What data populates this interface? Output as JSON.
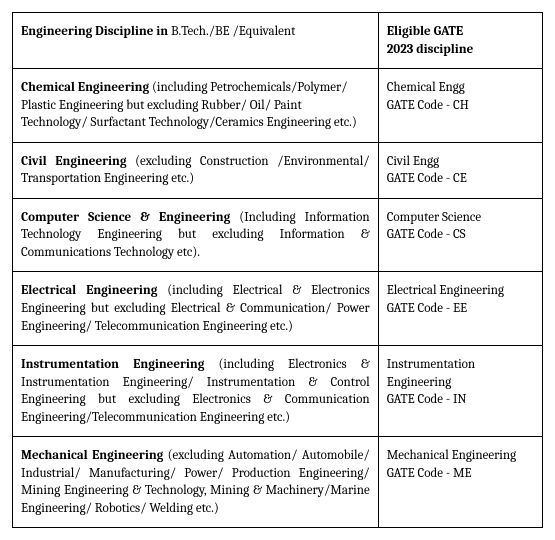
{
  "table": {
    "header": {
      "col1_bold": "Engineering Discipline in ",
      "col1_rest": "B.Tech./BE /Equivalent",
      "col2_line1": "Eligible GATE",
      "col2_line2": "2023 discipline"
    },
    "rows": [
      {
        "title": "Chemical Engineering ",
        "desc": "(including Petrochemicals/Polymer/ Plastic Engineering but excluding Rubber/ Oil/ Paint Technology/ Surfactant Technology/Ceramics Engineering etc.)",
        "gate_name": "Chemical Engg",
        "gate_code": "GATE Code - CH",
        "justify": false
      },
      {
        "title": "Civil Engineering ",
        "desc": "(excluding Construction /Environmental/ Transportation Engineering etc.)",
        "gate_name": "Civil Engg",
        "gate_code": "GATE Code - CE",
        "justify": true
      },
      {
        "title": "Computer Science & Engineering ",
        "desc": "(Including Information Technology Engineering but excluding Information & Communications Technology etc).",
        "gate_name": "Computer Science",
        "gate_code": "GATE Code - CS",
        "justify": true
      },
      {
        "title": "Electrical Engineering ",
        "desc": "(including Electrical & Electronics Engineering but excluding Electrical & Communication/ Power Engineering/ Telecommunication Engineering etc.)",
        "gate_name": "Electrical Engineering",
        "gate_code": "GATE Code - EE",
        "justify": true
      },
      {
        "title": "Instrumentation Engineering ",
        "desc": "(including Electronics & Instrumentation Engineering/ Instrumentation & Control Engineering but excluding Electronics & Communication Engineering/Telecommunication Engineering etc.)",
        "gate_name": "Instrumentation Engineering",
        "gate_code": "GATE Code - IN",
        "justify": true
      },
      {
        "title": "Mechanical Engineering ",
        "desc": "(excluding Automation/ Automobile/ Industrial/ Manufacturing/ Power/ Production Engineering/ Mining Engineering & Technology, Mining & Machinery/Marine Engineering/ Robotics/ Welding etc.)",
        "gate_name": "Mechanical Engineering",
        "gate_code": "GATE Code - ME",
        "justify": true
      }
    ]
  },
  "colors": {
    "border": "#000000",
    "text": "#000000",
    "background": "#ffffff"
  }
}
